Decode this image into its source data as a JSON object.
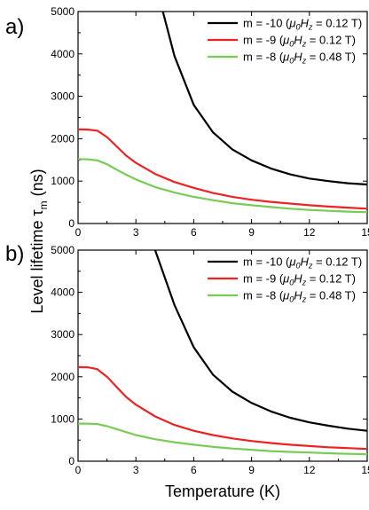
{
  "ylabel_main": "Level lifetime τ",
  "ylabel_sub": "m",
  "ylabel_unit": " (ns)",
  "chart_data": [
    {
      "type": "line",
      "panel_label": "a)",
      "xlabel": "",
      "xlim": [
        0,
        15
      ],
      "ylim": [
        0,
        5000
      ],
      "x_ticks": [
        0,
        3,
        6,
        9,
        12,
        15
      ],
      "y_ticks": [
        0,
        1000,
        2000,
        3000,
        4000,
        5000
      ],
      "legend_position": "top-right",
      "series": [
        {
          "name_pre": "m = -10 (",
          "name_mu": "μ",
          "name_mu_sub": "0",
          "name_H": "H",
          "name_H_sub": "z",
          "name_post": " = 0.12 T)",
          "color": "#000000",
          "x": [
            4.4,
            5,
            6,
            7,
            8,
            9,
            10,
            11,
            12,
            13,
            14,
            15
          ],
          "y": [
            5000,
            3950,
            2800,
            2150,
            1750,
            1490,
            1300,
            1160,
            1060,
            1000,
            950,
            920
          ]
        },
        {
          "name_pre": "m = -9 (",
          "name_mu": "μ",
          "name_mu_sub": "0",
          "name_H": "H",
          "name_H_sub": "z",
          "name_post": " = 0.12 T)",
          "color": "#ee2222",
          "x": [
            0,
            0.5,
            1,
            1.5,
            2,
            2.5,
            3,
            4,
            5,
            6,
            7,
            8,
            9,
            10,
            11,
            12,
            13,
            14,
            15
          ],
          "y": [
            2220,
            2215,
            2190,
            2040,
            1820,
            1600,
            1430,
            1170,
            980,
            840,
            720,
            630,
            560,
            510,
            470,
            430,
            400,
            375,
            350
          ]
        },
        {
          "name_pre": "m = -8 (",
          "name_mu": "μ",
          "name_mu_sub": "0",
          "name_H": "H",
          "name_H_sub": "z",
          "name_post": " = 0.48 T)",
          "color": "#77cc55",
          "x": [
            0,
            0.5,
            1,
            1.5,
            2,
            2.5,
            3,
            4,
            5,
            6,
            7,
            8,
            9,
            10,
            11,
            12,
            13,
            14,
            15
          ],
          "y": [
            1520,
            1515,
            1490,
            1400,
            1270,
            1150,
            1040,
            860,
            730,
            630,
            550,
            480,
            430,
            390,
            350,
            320,
            300,
            280,
            265
          ]
        }
      ]
    },
    {
      "type": "line",
      "panel_label": "b)",
      "xlabel": "Temperature (K)",
      "xlim": [
        0,
        15
      ],
      "ylim": [
        0,
        5000
      ],
      "x_ticks": [
        0,
        3,
        6,
        9,
        12,
        15
      ],
      "y_ticks": [
        0,
        1000,
        2000,
        3000,
        4000,
        5000
      ],
      "legend_position": "top-right",
      "series": [
        {
          "name_pre": "m = -10 (",
          "name_mu": "μ",
          "name_mu_sub": "0",
          "name_H": "H",
          "name_H_sub": "z",
          "name_post": " = 0.12 T)",
          "color": "#000000",
          "x": [
            4.0,
            4.5,
            5,
            6,
            7,
            8,
            9,
            10,
            11,
            12,
            13,
            14,
            15
          ],
          "y": [
            5000,
            4350,
            3700,
            2700,
            2050,
            1650,
            1380,
            1180,
            1030,
            920,
            840,
            770,
            720
          ]
        },
        {
          "name_pre": "m = -9 (",
          "name_mu": "μ",
          "name_mu_sub": "0",
          "name_H": "H",
          "name_H_sub": "z",
          "name_post": " = 0.12 T)",
          "color": "#ee2222",
          "x": [
            0,
            0.5,
            1,
            1.5,
            2,
            2.5,
            3,
            4,
            5,
            6,
            7,
            8,
            9,
            10,
            11,
            12,
            13,
            14,
            15
          ],
          "y": [
            2230,
            2225,
            2180,
            2000,
            1760,
            1520,
            1340,
            1060,
            860,
            720,
            620,
            540,
            480,
            430,
            390,
            360,
            330,
            310,
            290
          ]
        },
        {
          "name_pre": "m = -8 (",
          "name_mu": "μ",
          "name_mu_sub": "0",
          "name_H": "H",
          "name_H_sub": "z",
          "name_post": " = 0.48 T)",
          "color": "#77cc55",
          "x": [
            0,
            0.5,
            1,
            1.5,
            2,
            2.5,
            3,
            4,
            5,
            6,
            7,
            8,
            9,
            10,
            11,
            12,
            13,
            14,
            15
          ],
          "y": [
            890,
            890,
            880,
            830,
            760,
            690,
            620,
            520,
            450,
            390,
            340,
            300,
            270,
            240,
            220,
            205,
            190,
            175,
            165
          ]
        }
      ]
    }
  ]
}
